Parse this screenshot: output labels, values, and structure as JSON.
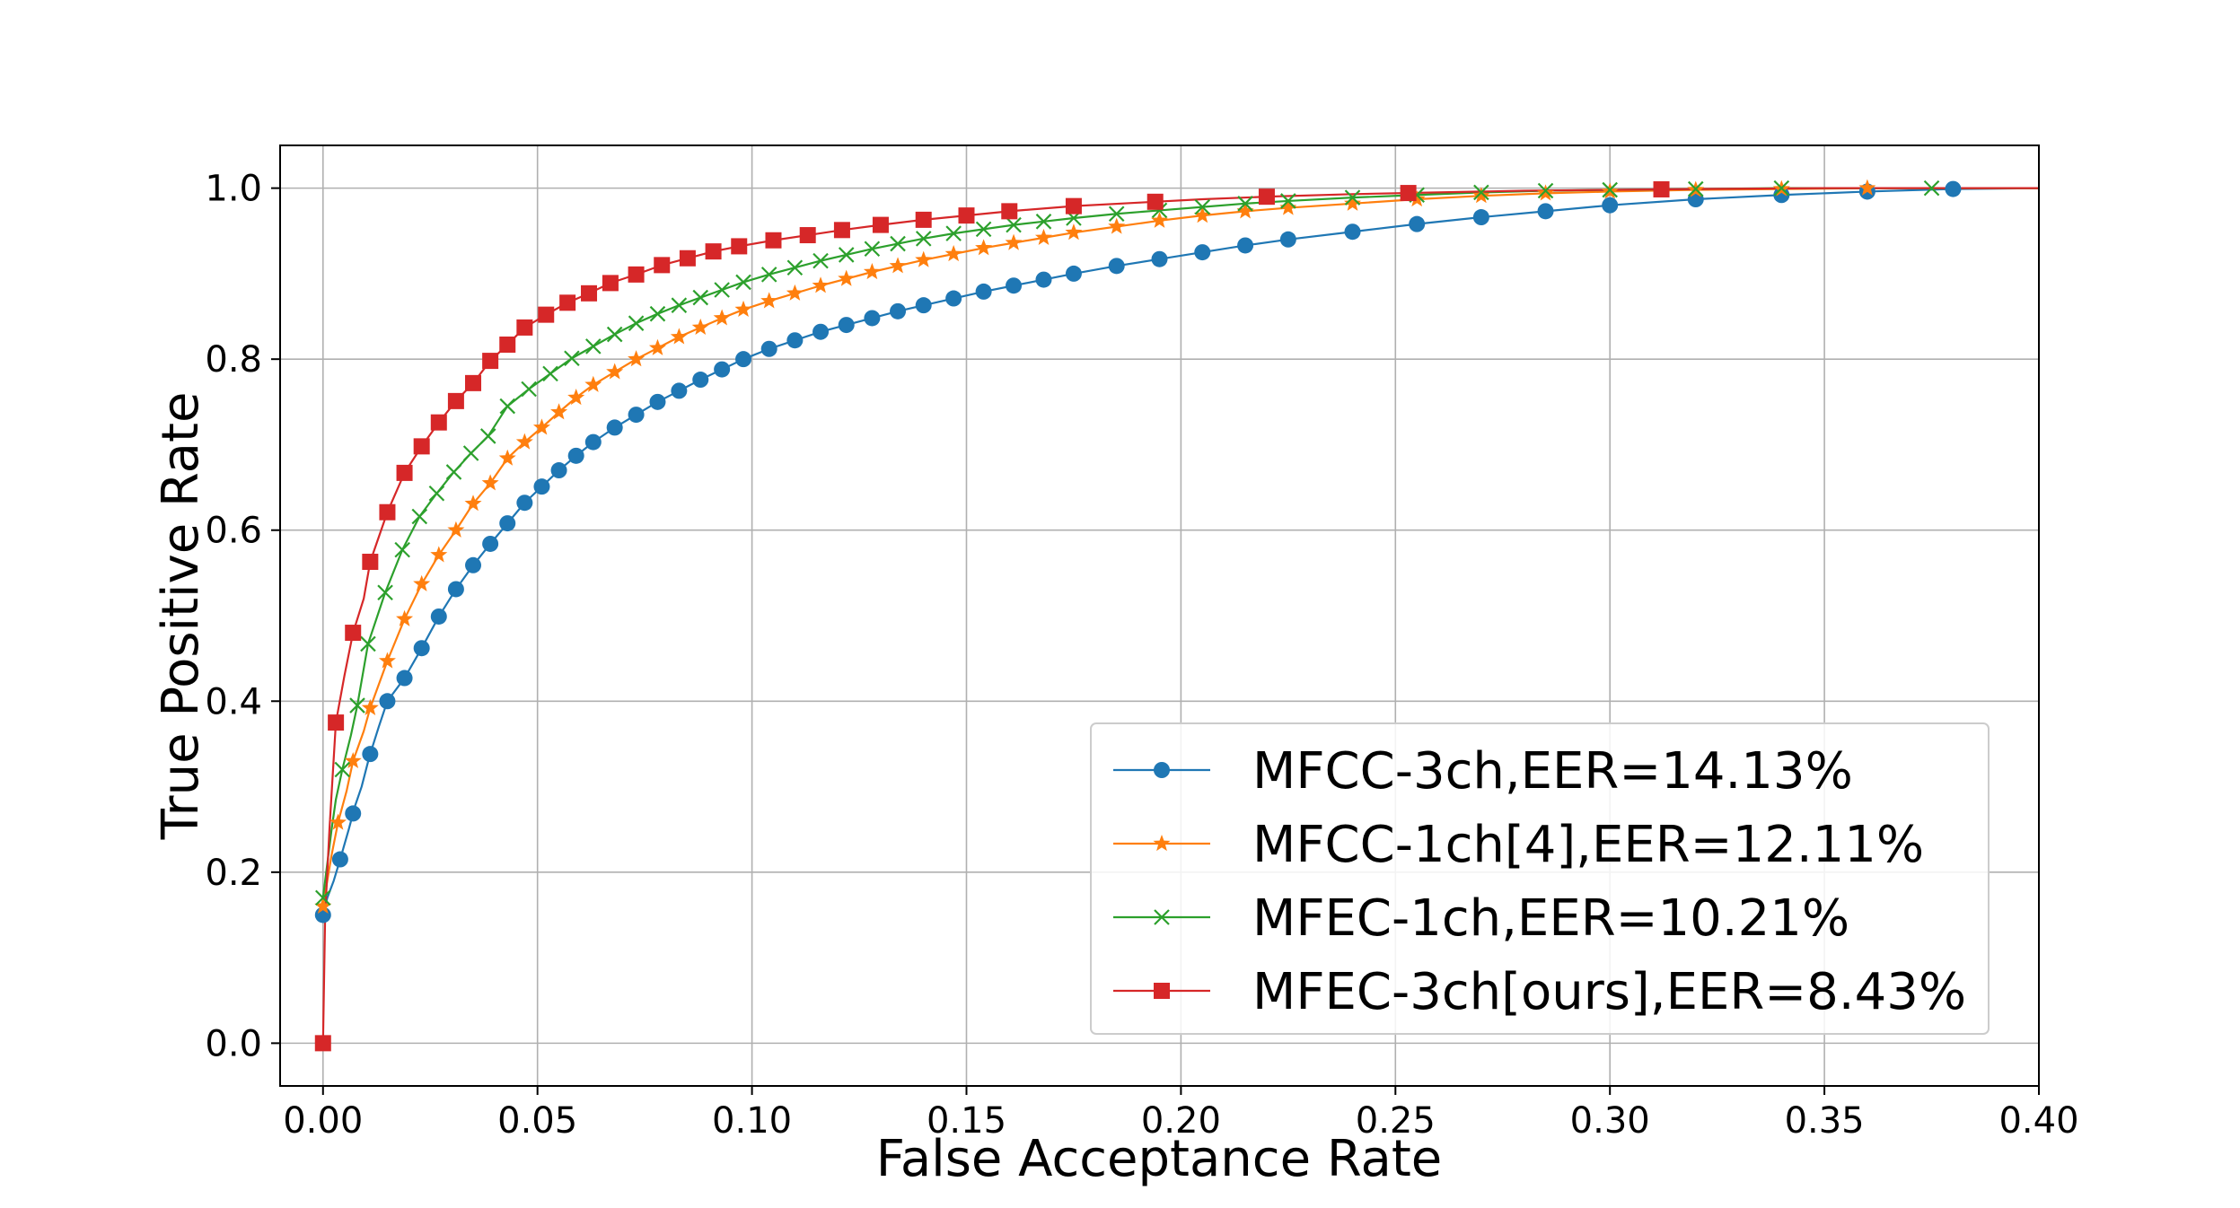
{
  "chart_data": {
    "type": "line",
    "title": "",
    "xlabel": "False Acceptance Rate",
    "ylabel": "True Positive Rate",
    "xlim": [
      -0.01,
      0.4
    ],
    "ylim": [
      -0.05,
      1.05
    ],
    "xticks": [
      0.0,
      0.05,
      0.1,
      0.15,
      0.2,
      0.25,
      0.3,
      0.35,
      0.4
    ],
    "xtick_labels": [
      "0.00",
      "0.05",
      "0.10",
      "0.15",
      "0.20",
      "0.25",
      "0.30",
      "0.35",
      "0.40"
    ],
    "yticks": [
      0.0,
      0.2,
      0.4,
      0.6,
      0.8,
      1.0
    ],
    "ytick_labels": [
      "0.0",
      "0.2",
      "0.4",
      "0.6",
      "0.8",
      "1.0"
    ],
    "grid": true,
    "legend_position": "lower-right",
    "series": [
      {
        "name": "MFCC-3ch,EER=14.13%",
        "color": "#1f77b4",
        "marker": "circle",
        "curve": [
          [
            0,
            0.15
          ],
          [
            0.001,
            0.17
          ],
          [
            0.0025,
            0.19
          ],
          [
            0.004,
            0.215
          ],
          [
            0.006,
            0.25
          ],
          [
            0.0075,
            0.278
          ],
          [
            0.009,
            0.3
          ],
          [
            0.0108,
            0.335
          ],
          [
            0.013,
            0.37
          ],
          [
            0.015,
            0.4
          ],
          [
            0.019,
            0.427
          ],
          [
            0.023,
            0.462
          ],
          [
            0.027,
            0.499
          ],
          [
            0.031,
            0.531
          ],
          [
            0.035,
            0.559
          ],
          [
            0.039,
            0.584
          ],
          [
            0.043,
            0.608
          ],
          [
            0.047,
            0.632
          ],
          [
            0.051,
            0.651
          ],
          [
            0.055,
            0.67
          ],
          [
            0.059,
            0.687
          ],
          [
            0.063,
            0.703
          ],
          [
            0.068,
            0.72
          ],
          [
            0.073,
            0.735
          ],
          [
            0.078,
            0.75
          ],
          [
            0.083,
            0.763
          ],
          [
            0.088,
            0.776
          ],
          [
            0.093,
            0.788
          ],
          [
            0.098,
            0.8
          ],
          [
            0.104,
            0.812
          ],
          [
            0.11,
            0.822
          ],
          [
            0.116,
            0.832
          ],
          [
            0.122,
            0.84
          ],
          [
            0.128,
            0.848
          ],
          [
            0.134,
            0.856
          ],
          [
            0.14,
            0.863
          ],
          [
            0.147,
            0.871
          ],
          [
            0.154,
            0.879
          ],
          [
            0.161,
            0.886
          ],
          [
            0.168,
            0.893
          ],
          [
            0.175,
            0.9
          ],
          [
            0.185,
            0.909
          ],
          [
            0.195,
            0.917
          ],
          [
            0.205,
            0.925
          ],
          [
            0.215,
            0.933
          ],
          [
            0.225,
            0.94
          ],
          [
            0.24,
            0.949
          ],
          [
            0.255,
            0.958
          ],
          [
            0.27,
            0.966
          ],
          [
            0.285,
            0.973
          ],
          [
            0.3,
            0.98
          ],
          [
            0.32,
            0.987
          ],
          [
            0.34,
            0.992
          ],
          [
            0.36,
            0.996
          ],
          [
            0.38,
            0.999
          ],
          [
            0.4,
            1.0
          ]
        ],
        "markers_x": [
          0.0,
          0.004,
          0.007,
          0.011,
          0.015,
          0.019,
          0.023,
          0.027,
          0.031,
          0.035,
          0.039,
          0.043,
          0.047,
          0.051,
          0.055,
          0.059,
          0.063,
          0.068,
          0.073,
          0.078,
          0.083,
          0.088,
          0.093,
          0.098,
          0.104,
          0.11,
          0.116,
          0.122,
          0.128,
          0.134,
          0.14,
          0.147,
          0.154,
          0.161,
          0.168,
          0.175,
          0.185,
          0.195,
          0.205,
          0.215,
          0.225,
          0.24,
          0.255,
          0.27,
          0.285,
          0.3,
          0.32,
          0.34,
          0.36,
          0.38
        ]
      },
      {
        "name": "MFCC-1ch[4],EER=12.11%",
        "color": "#ff7f0e",
        "marker": "star",
        "curve": [
          [
            0,
            0.16
          ],
          [
            0.001,
            0.19
          ],
          [
            0.002,
            0.22
          ],
          [
            0.0035,
            0.258
          ],
          [
            0.0055,
            0.295
          ],
          [
            0.007,
            0.33
          ],
          [
            0.0095,
            0.365
          ],
          [
            0.011,
            0.392
          ],
          [
            0.015,
            0.447
          ],
          [
            0.019,
            0.496
          ],
          [
            0.023,
            0.537
          ],
          [
            0.027,
            0.571
          ],
          [
            0.031,
            0.6
          ],
          [
            0.035,
            0.631
          ],
          [
            0.039,
            0.655
          ],
          [
            0.043,
            0.684
          ],
          [
            0.047,
            0.703
          ],
          [
            0.051,
            0.72
          ],
          [
            0.055,
            0.738
          ],
          [
            0.059,
            0.755
          ],
          [
            0.063,
            0.77
          ],
          [
            0.068,
            0.785
          ],
          [
            0.073,
            0.8
          ],
          [
            0.078,
            0.813
          ],
          [
            0.083,
            0.826
          ],
          [
            0.088,
            0.837
          ],
          [
            0.093,
            0.848
          ],
          [
            0.098,
            0.858
          ],
          [
            0.104,
            0.868
          ],
          [
            0.11,
            0.877
          ],
          [
            0.116,
            0.886
          ],
          [
            0.122,
            0.894
          ],
          [
            0.128,
            0.902
          ],
          [
            0.134,
            0.909
          ],
          [
            0.14,
            0.916
          ],
          [
            0.147,
            0.923
          ],
          [
            0.154,
            0.93
          ],
          [
            0.161,
            0.936
          ],
          [
            0.168,
            0.942
          ],
          [
            0.175,
            0.948
          ],
          [
            0.185,
            0.955
          ],
          [
            0.195,
            0.962
          ],
          [
            0.205,
            0.968
          ],
          [
            0.215,
            0.973
          ],
          [
            0.225,
            0.977
          ],
          [
            0.24,
            0.982
          ],
          [
            0.255,
            0.987
          ],
          [
            0.27,
            0.991
          ],
          [
            0.285,
            0.994
          ],
          [
            0.3,
            0.996
          ],
          [
            0.32,
            0.998
          ],
          [
            0.34,
            0.999
          ],
          [
            0.36,
            1.0
          ],
          [
            0.4,
            1.0
          ]
        ],
        "markers_x": [
          0.0,
          0.0035,
          0.007,
          0.011,
          0.015,
          0.019,
          0.023,
          0.027,
          0.031,
          0.035,
          0.039,
          0.043,
          0.047,
          0.051,
          0.055,
          0.059,
          0.063,
          0.068,
          0.073,
          0.078,
          0.083,
          0.088,
          0.093,
          0.098,
          0.104,
          0.11,
          0.116,
          0.122,
          0.128,
          0.134,
          0.14,
          0.147,
          0.154,
          0.161,
          0.168,
          0.175,
          0.185,
          0.195,
          0.205,
          0.215,
          0.225,
          0.24,
          0.255,
          0.27,
          0.285,
          0.3,
          0.32,
          0.34,
          0.36
        ]
      },
      {
        "name": "MFEC-1ch,EER=10.21%",
        "color": "#2ca02c",
        "marker": "x",
        "curve": [
          [
            0,
            0.17
          ],
          [
            0.001,
            0.21
          ],
          [
            0.002,
            0.25
          ],
          [
            0.003,
            0.285
          ],
          [
            0.0045,
            0.32
          ],
          [
            0.0065,
            0.36
          ],
          [
            0.008,
            0.395
          ],
          [
            0.0105,
            0.467
          ],
          [
            0.0145,
            0.527
          ],
          [
            0.0185,
            0.577
          ],
          [
            0.0225,
            0.616
          ],
          [
            0.0265,
            0.643
          ],
          [
            0.0305,
            0.668
          ],
          [
            0.0345,
            0.69
          ],
          [
            0.0385,
            0.71
          ],
          [
            0.043,
            0.745
          ],
          [
            0.048,
            0.765
          ],
          [
            0.053,
            0.783
          ],
          [
            0.058,
            0.801
          ],
          [
            0.063,
            0.815
          ],
          [
            0.068,
            0.829
          ],
          [
            0.073,
            0.842
          ],
          [
            0.078,
            0.853
          ],
          [
            0.083,
            0.863
          ],
          [
            0.088,
            0.872
          ],
          [
            0.093,
            0.881
          ],
          [
            0.098,
            0.89
          ],
          [
            0.104,
            0.899
          ],
          [
            0.11,
            0.907
          ],
          [
            0.116,
            0.915
          ],
          [
            0.122,
            0.922
          ],
          [
            0.128,
            0.929
          ],
          [
            0.134,
            0.935
          ],
          [
            0.14,
            0.941
          ],
          [
            0.147,
            0.947
          ],
          [
            0.154,
            0.952
          ],
          [
            0.161,
            0.957
          ],
          [
            0.168,
            0.961
          ],
          [
            0.175,
            0.965
          ],
          [
            0.185,
            0.97
          ],
          [
            0.195,
            0.974
          ],
          [
            0.205,
            0.978
          ],
          [
            0.215,
            0.982
          ],
          [
            0.225,
            0.985
          ],
          [
            0.24,
            0.989
          ],
          [
            0.255,
            0.992
          ],
          [
            0.27,
            0.995
          ],
          [
            0.285,
            0.997
          ],
          [
            0.3,
            0.998
          ],
          [
            0.32,
            0.999
          ],
          [
            0.34,
            1.0
          ],
          [
            0.4,
            1.0
          ]
        ],
        "markers_x": [
          0.0,
          0.0045,
          0.008,
          0.0105,
          0.0145,
          0.0185,
          0.0225,
          0.0265,
          0.0305,
          0.0345,
          0.0385,
          0.043,
          0.048,
          0.053,
          0.058,
          0.063,
          0.068,
          0.073,
          0.078,
          0.083,
          0.088,
          0.093,
          0.098,
          0.104,
          0.11,
          0.116,
          0.122,
          0.128,
          0.134,
          0.14,
          0.147,
          0.154,
          0.161,
          0.168,
          0.175,
          0.185,
          0.195,
          0.205,
          0.215,
          0.225,
          0.24,
          0.255,
          0.27,
          0.285,
          0.3,
          0.32,
          0.34,
          0.375
        ]
      },
      {
        "name": "MFEC-3ch[ours],EER=8.43%",
        "color": "#d62728",
        "marker": "square",
        "curve": [
          [
            0,
            0.0
          ],
          [
            0.0005,
            0.15
          ],
          [
            0.0015,
            0.25
          ],
          [
            0.003,
            0.375
          ],
          [
            0.005,
            0.43
          ],
          [
            0.007,
            0.48
          ],
          [
            0.0095,
            0.52
          ],
          [
            0.011,
            0.563
          ],
          [
            0.015,
            0.621
          ],
          [
            0.019,
            0.667
          ],
          [
            0.023,
            0.698
          ],
          [
            0.027,
            0.726
          ],
          [
            0.031,
            0.751
          ],
          [
            0.035,
            0.772
          ],
          [
            0.039,
            0.798
          ],
          [
            0.043,
            0.817
          ],
          [
            0.047,
            0.837
          ],
          [
            0.052,
            0.852
          ],
          [
            0.057,
            0.866
          ],
          [
            0.062,
            0.877
          ],
          [
            0.067,
            0.889
          ],
          [
            0.073,
            0.899
          ],
          [
            0.079,
            0.91
          ],
          [
            0.085,
            0.918
          ],
          [
            0.091,
            0.926
          ],
          [
            0.097,
            0.932
          ],
          [
            0.105,
            0.939
          ],
          [
            0.113,
            0.945
          ],
          [
            0.121,
            0.951
          ],
          [
            0.13,
            0.957
          ],
          [
            0.14,
            0.963
          ],
          [
            0.15,
            0.968
          ],
          [
            0.16,
            0.973
          ],
          [
            0.175,
            0.979
          ],
          [
            0.19,
            0.983
          ],
          [
            0.205,
            0.987
          ],
          [
            0.22,
            0.99
          ],
          [
            0.24,
            0.993
          ],
          [
            0.26,
            0.995
          ],
          [
            0.28,
            0.997
          ],
          [
            0.3,
            0.998
          ],
          [
            0.32,
            0.999
          ],
          [
            0.35,
            1.0
          ],
          [
            0.4,
            1.0
          ]
        ],
        "markers_x": [
          0.0,
          0.003,
          0.007,
          0.011,
          0.015,
          0.019,
          0.023,
          0.027,
          0.031,
          0.035,
          0.039,
          0.043,
          0.047,
          0.052,
          0.057,
          0.062,
          0.067,
          0.073,
          0.079,
          0.085,
          0.091,
          0.097,
          0.105,
          0.113,
          0.121,
          0.13,
          0.14,
          0.15,
          0.16,
          0.175,
          0.194,
          0.22,
          0.253,
          0.312
        ]
      }
    ]
  }
}
